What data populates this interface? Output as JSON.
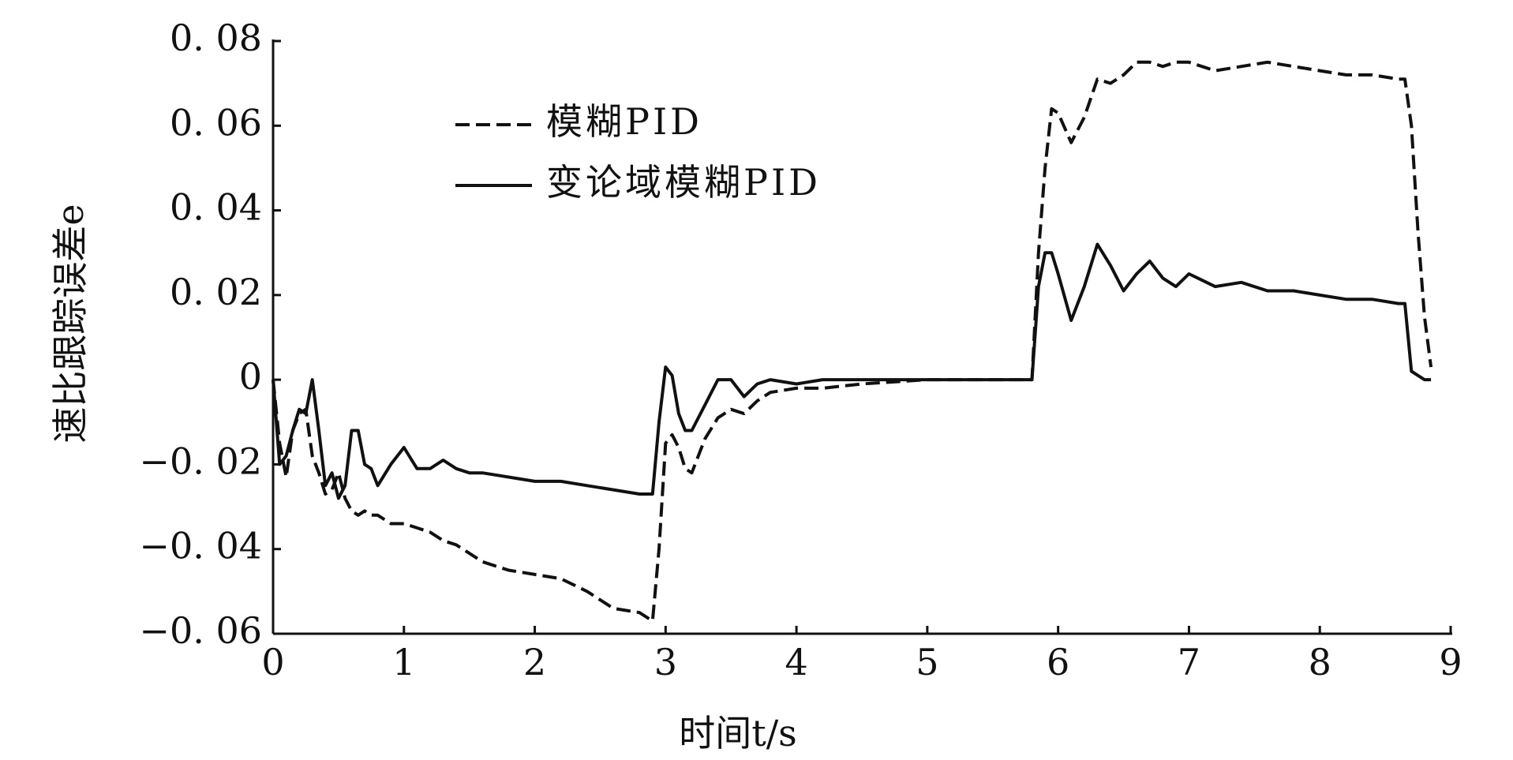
{
  "chart_data": {
    "type": "line",
    "xlabel": "时间t/s",
    "ylabel": "速比跟踪误差e",
    "x": [
      0,
      0.05,
      0.1,
      0.15,
      0.2,
      0.25,
      0.3,
      0.35,
      0.4,
      0.45,
      0.5,
      0.55,
      0.6,
      0.65,
      0.7,
      0.75,
      0.8,
      0.9,
      1.0,
      1.1,
      1.2,
      1.3,
      1.4,
      1.5,
      1.6,
      1.8,
      2.0,
      2.2,
      2.4,
      2.6,
      2.8,
      2.9,
      2.95,
      3.0,
      3.05,
      3.1,
      3.15,
      3.2,
      3.3,
      3.4,
      3.5,
      3.6,
      3.7,
      3.8,
      4.0,
      4.2,
      4.5,
      5.0,
      5.5,
      5.8,
      5.85,
      5.9,
      5.95,
      6.0,
      6.1,
      6.2,
      6.3,
      6.4,
      6.5,
      6.6,
      6.7,
      6.8,
      6.9,
      7.0,
      7.2,
      7.4,
      7.6,
      7.8,
      8.0,
      8.2,
      8.4,
      8.6,
      8.65,
      8.7,
      8.75,
      8.8,
      8.85
    ],
    "series": [
      {
        "name": "模糊PID",
        "color": "#111111",
        "linestyle": "dashed",
        "values": [
          0,
          -0.015,
          -0.023,
          -0.012,
          -0.008,
          -0.007,
          -0.018,
          -0.022,
          -0.027,
          -0.026,
          -0.022,
          -0.028,
          -0.031,
          -0.032,
          -0.031,
          -0.032,
          -0.032,
          -0.034,
          -0.034,
          -0.035,
          -0.036,
          -0.038,
          -0.039,
          -0.041,
          -0.043,
          -0.045,
          -0.046,
          -0.047,
          -0.05,
          -0.054,
          -0.055,
          -0.057,
          -0.04,
          -0.015,
          -0.013,
          -0.016,
          -0.021,
          -0.022,
          -0.014,
          -0.009,
          -0.007,
          -0.008,
          -0.005,
          -0.003,
          -0.002,
          -0.002,
          -0.001,
          0,
          0,
          0,
          0.03,
          0.05,
          0.064,
          0.063,
          0.056,
          0.062,
          0.071,
          0.07,
          0.072,
          0.075,
          0.075,
          0.074,
          0.075,
          0.075,
          0.073,
          0.074,
          0.075,
          0.074,
          0.073,
          0.072,
          0.072,
          0.071,
          0.071,
          0.06,
          0.035,
          0.015,
          0.003
        ]
      },
      {
        "name": "变论域模糊PID",
        "color": "#111111",
        "linestyle": "solid",
        "values": [
          0,
          -0.02,
          -0.018,
          -0.012,
          -0.007,
          -0.008,
          0,
          -0.012,
          -0.025,
          -0.022,
          -0.028,
          -0.025,
          -0.012,
          -0.012,
          -0.02,
          -0.021,
          -0.025,
          -0.02,
          -0.016,
          -0.021,
          -0.021,
          -0.019,
          -0.021,
          -0.022,
          -0.022,
          -0.023,
          -0.024,
          -0.024,
          -0.025,
          -0.026,
          -0.027,
          -0.027,
          -0.01,
          0.003,
          0.001,
          -0.008,
          -0.012,
          -0.012,
          -0.006,
          0,
          0,
          -0.004,
          -0.001,
          0,
          -0.001,
          0,
          0,
          0,
          0,
          0,
          0.022,
          0.03,
          0.03,
          0.025,
          0.014,
          0.022,
          0.032,
          0.027,
          0.021,
          0.025,
          0.028,
          0.024,
          0.022,
          0.025,
          0.022,
          0.023,
          0.021,
          0.021,
          0.02,
          0.019,
          0.019,
          0.018,
          0.018,
          0.002,
          0.001,
          0,
          0
        ]
      }
    ],
    "xlim": [
      0,
      9
    ],
    "xticks": [
      0,
      1,
      2,
      3,
      4,
      5,
      6,
      7,
      8,
      9
    ],
    "ylim": [
      -0.06,
      0.08
    ],
    "yticks": [
      {
        "value": -0.06,
        "label": "−0. 06"
      },
      {
        "value": -0.04,
        "label": "−0. 04"
      },
      {
        "value": -0.02,
        "label": "−0. 02"
      },
      0,
      {
        "value": 0.02,
        "label": "0. 02"
      },
      {
        "value": 0.04,
        "label": "0. 04"
      },
      {
        "value": 0.06,
        "label": "0. 06"
      },
      {
        "value": 0.08,
        "label": "0. 08"
      }
    ],
    "legend": "upper left",
    "grid": false
  }
}
